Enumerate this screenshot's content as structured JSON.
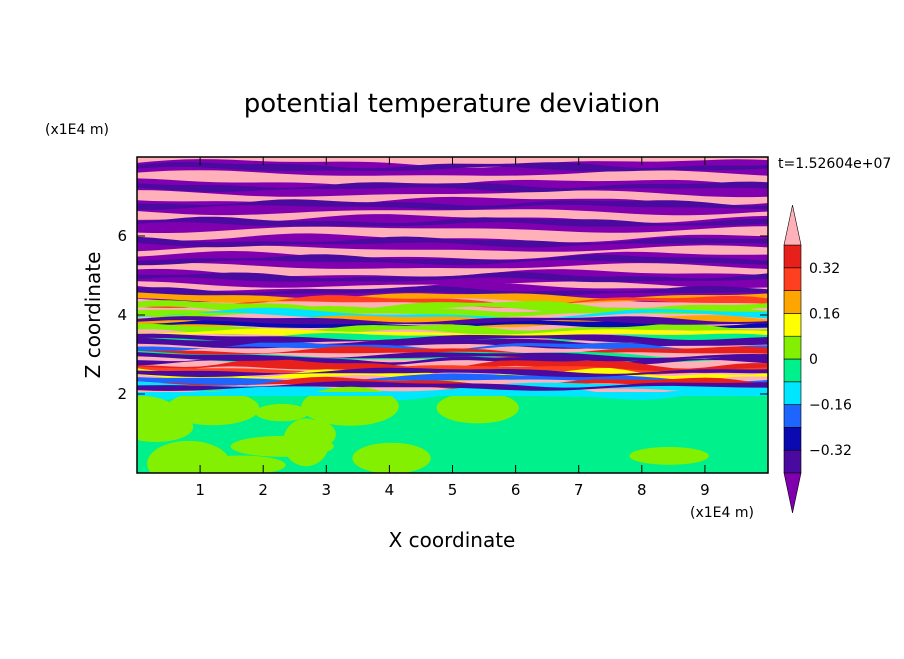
{
  "chart_data": {
    "type": "heatmap",
    "title": "potential temperature deviation",
    "xlabel": "X coordinate",
    "ylabel": "Z coordinate",
    "x_unit": "(x1E4 m)",
    "y_unit": "(x1E4 m)",
    "time_label": "t=1.52604e+07",
    "xlim": [
      0,
      10
    ],
    "ylim": [
      0,
      8
    ],
    "x_ticks": [
      "1",
      "2",
      "3",
      "4",
      "5",
      "6",
      "7",
      "8",
      "9"
    ],
    "y_ticks": [
      "2",
      "4",
      "6"
    ],
    "colorbar": {
      "levels": [
        -0.4,
        -0.32,
        -0.24,
        -0.16,
        -0.08,
        0,
        0.08,
        0.16,
        0.24,
        0.32,
        0.4
      ],
      "tick_labels": [
        "0.32",
        "0.16",
        "0",
        "−0.16",
        "−0.32"
      ],
      "tick_values": [
        0.32,
        0.16,
        0,
        -0.16,
        -0.32
      ],
      "colors": [
        "#8000b0",
        "#4a0aa0",
        "#0a0ab0",
        "#1e64ff",
        "#00e6ff",
        "#00f08c",
        "#82f000",
        "#ffff00",
        "#ffa500",
        "#ff4020",
        "#e8201c",
        "#ffb0b8"
      ]
    },
    "regions": [
      {
        "name": "upper-layers",
        "z_range": [
          4.5,
          8
        ],
        "dominant": "alternating pink and purple horizontal bands"
      },
      {
        "name": "middle-layers",
        "z_range": [
          2,
          4.5
        ],
        "dominant": "mixed multicolor bands"
      },
      {
        "name": "lower-layer",
        "z_range": [
          0,
          2
        ],
        "dominant": "green and light green"
      }
    ]
  }
}
